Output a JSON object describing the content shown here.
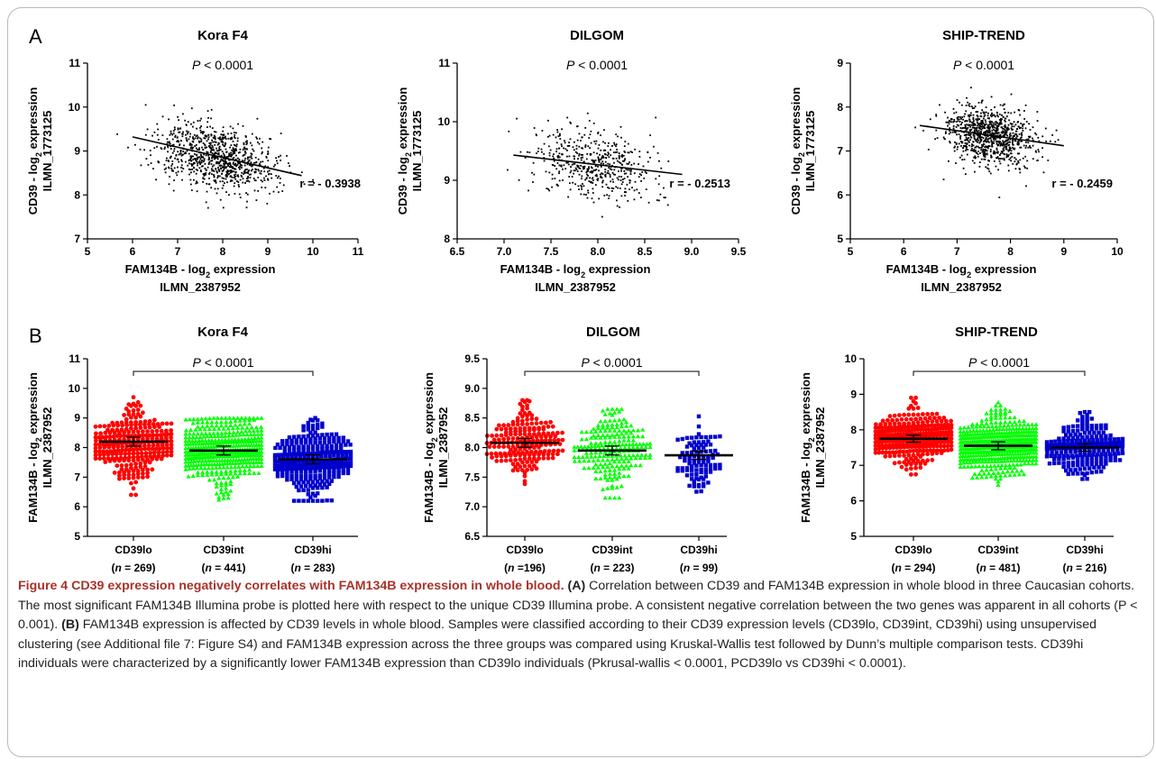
{
  "panel_a_letter": "A",
  "panel_b_letter": "B",
  "chart_data": [
    {
      "type": "scatter",
      "panel": "A",
      "title": "Kora F4",
      "p_label": "P < 0.0001",
      "r_label": "r = - 0.3938",
      "xlabel": "FAM134B - log2 expression",
      "xlabel2": "ILMN_2387952",
      "ylabel": "CD39 - log2 expression",
      "ylabel2": "ILMN_1773125",
      "xlim": [
        5,
        11
      ],
      "ylim": [
        7,
        11
      ],
      "xticks": [
        "5",
        "6",
        "7",
        "8",
        "9",
        "10",
        "11"
      ],
      "yticks": [
        "7",
        "8",
        "9",
        "10",
        "11"
      ],
      "x_center": 7.9,
      "x_sd": 0.65,
      "y_center": 8.85,
      "y_sd": 0.37,
      "regression": {
        "x": [
          6.0,
          9.75
        ],
        "y": [
          9.32,
          8.44
        ]
      },
      "point_count": 900
    },
    {
      "type": "scatter",
      "panel": "A",
      "title": "DILGOM",
      "p_label": "P < 0.0001",
      "r_label": "r = - 0.2513",
      "xlabel": "FAM134B - log2 expression",
      "xlabel2": "ILMN_2387952",
      "ylabel": "CD39 - log2 expression",
      "ylabel2": "ILMN_1773125",
      "xlim": [
        6.5,
        9.5
      ],
      "ylim": [
        8,
        11
      ],
      "xticks": [
        "6.5",
        "7.0",
        "7.5",
        "8.0",
        "8.5",
        "9.0",
        "9.5"
      ],
      "yticks": [
        "8",
        "9",
        "10",
        "11"
      ],
      "x_center": 7.95,
      "x_sd": 0.33,
      "y_center": 9.3,
      "y_sd": 0.3,
      "regression": {
        "x": [
          7.1,
          8.9
        ],
        "y": [
          9.43,
          9.1
        ]
      },
      "point_count": 500
    },
    {
      "type": "scatter",
      "panel": "A",
      "title": "SHIP-TREND",
      "p_label": "P < 0.0001",
      "r_label": "r = - 0.2459",
      "xlabel": "FAM134B - log2 expression",
      "xlabel2": "ILMN_2387952",
      "ylabel": "CD39 - log2 expression",
      "ylabel2": "ILMN_1773125",
      "xlim": [
        5,
        10
      ],
      "ylim": [
        5,
        9
      ],
      "xticks": [
        "5",
        "6",
        "7",
        "8",
        "9",
        "10"
      ],
      "yticks": [
        "5",
        "6",
        "7",
        "8",
        "9"
      ],
      "x_center": 7.6,
      "x_sd": 0.42,
      "y_center": 7.35,
      "y_sd": 0.33,
      "regression": {
        "x": [
          6.3,
          9.0
        ],
        "y": [
          7.58,
          7.12
        ]
      },
      "point_count": 900
    },
    {
      "type": "scatter",
      "subtype": "dot-plot",
      "panel": "B",
      "title": "Kora F4",
      "p_label": "P < 0.0001",
      "ylabel": "FAM134B - log2 expression",
      "ylabel2": "ILMN_2387952",
      "ylim": [
        5,
        11
      ],
      "yticks": [
        "5",
        "6",
        "7",
        "8",
        "9",
        "10",
        "11"
      ],
      "categories": [
        "CD39lo",
        "CD39int",
        "CD39hi"
      ],
      "n_labels": [
        "(n = 269)",
        "(n = 441)",
        "(n = 283)"
      ],
      "n": [
        269,
        441,
        283
      ],
      "means": [
        8.2,
        7.9,
        7.6
      ],
      "sd": [
        0.6,
        0.6,
        0.6
      ],
      "ranges": [
        [
          6.4,
          9.7
        ],
        [
          6.1,
          9.0
        ],
        [
          6.2,
          9.0
        ]
      ],
      "colors": [
        "#ff0000",
        "#00ff00",
        "#0000cc"
      ],
      "markers": [
        "circle",
        "triangle",
        "square"
      ]
    },
    {
      "type": "scatter",
      "subtype": "dot-plot",
      "panel": "B",
      "title": "DILGOM",
      "p_label": "P < 0.0001",
      "ylabel": "FAM134B - log2 expression",
      "ylabel2": "ILMN_2387952",
      "ylim": [
        6.5,
        9.5
      ],
      "yticks": [
        "6.5",
        "7.0",
        "7.5",
        "8.0",
        "8.5",
        "9.0",
        "9.5"
      ],
      "categories": [
        "CD39lo",
        "CD39int",
        "CD39hi"
      ],
      "n_labels": [
        "(n =196)",
        "(n = 223)",
        "(n = 99)"
      ],
      "n": [
        196,
        223,
        99
      ],
      "means": [
        8.08,
        7.95,
        7.87
      ],
      "sd": [
        0.3,
        0.3,
        0.28
      ],
      "ranges": [
        [
          7.2,
          8.8
        ],
        [
          7.15,
          8.65
        ],
        [
          7.1,
          8.55
        ]
      ],
      "colors": [
        "#ff0000",
        "#00ff00",
        "#0000cc"
      ],
      "markers": [
        "circle",
        "triangle",
        "square"
      ]
    },
    {
      "type": "scatter",
      "subtype": "dot-plot",
      "panel": "B",
      "title": "SHIP-TREND",
      "p_label": "P < 0.0001",
      "ylabel": "FAM134B - log2 expression",
      "ylabel2": "ILMN_2387952",
      "ylim": [
        5,
        10
      ],
      "yticks": [
        "5",
        "6",
        "7",
        "8",
        "9",
        "10"
      ],
      "categories": [
        "CD39lo",
        "CD39int",
        "CD39hi"
      ],
      "n_labels": [
        "(n = 294)",
        "(n = 481)",
        "(n = 216)"
      ],
      "n": [
        294,
        481,
        216
      ],
      "means": [
        7.75,
        7.55,
        7.5
      ],
      "sd": [
        0.4,
        0.45,
        0.42
      ],
      "ranges": [
        [
          6.4,
          8.9
        ],
        [
          6.2,
          9.0
        ],
        [
          6.3,
          8.5
        ]
      ],
      "colors": [
        "#ff0000",
        "#00ff00",
        "#0000cc"
      ],
      "markers": [
        "circle",
        "triangle",
        "square"
      ]
    }
  ],
  "caption": {
    "title": "Figure 4 CD39 expression negatively correlates with FAM134B expression in whole blood.",
    "ref_a": "(A)",
    "text_a": "Correlation between CD39 and FAM134B expression in whole blood in three Caucasian cohorts. The most significant FAM134B Illumina probe is plotted here with respect to the unique CD39 Illumina probe. A consistent negative correlation between the two genes was apparent in all cohorts (P < 0.001).",
    "ref_b": "(B)",
    "text_b": "FAM134B expression is affected by CD39 levels in whole blood. Samples were classified according to their CD39 expression levels (CD39lo, CD39int, CD39hi) using unsupervised clustering (see Additional file 7: Figure S4) and FAM134B expression across the three groups was compared using Kruskal-Wallis test followed by Dunn’s multiple comparison tests. CD39hi individuals were characterized by a significantly lower FAM134B expression than CD39lo individuals (Pkrusal-wallis < 0.0001, PCD39lo vs CD39hi < 0.0001)."
  }
}
